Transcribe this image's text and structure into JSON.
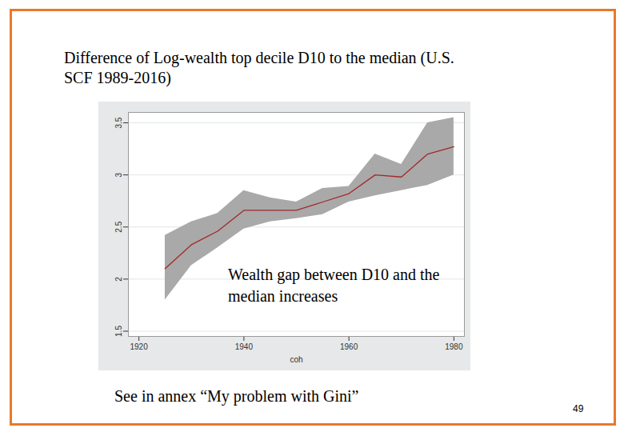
{
  "chart_data": {
    "type": "line",
    "title": "Difference of Log-wealth top decile D10 to the median (U.S. SCF 1989-2016)",
    "x_label": "coh",
    "x": [
      1925,
      1930,
      1935,
      1940,
      1945,
      1950,
      1955,
      1960,
      1965,
      1970,
      1975,
      1980
    ],
    "values": [
      2.1,
      2.33,
      2.46,
      2.66,
      2.66,
      2.66,
      2.74,
      2.82,
      3.0,
      2.98,
      3.2,
      3.27
    ],
    "ci_lower": [
      1.8,
      2.13,
      2.3,
      2.48,
      2.55,
      2.58,
      2.62,
      2.74,
      2.8,
      2.85,
      2.9,
      3.0
    ],
    "ci_upper": [
      2.42,
      2.55,
      2.63,
      2.85,
      2.78,
      2.74,
      2.87,
      2.89,
      3.2,
      3.1,
      3.5,
      3.55
    ],
    "color": "#a3282a",
    "xlim": [
      1918,
      1982
    ],
    "xticks": [
      1920,
      1940,
      1960,
      1980
    ],
    "ylim": [
      1.45,
      3.6
    ],
    "yticks": [
      1.5,
      2,
      2.5,
      3,
      3.5
    ],
    "grid": true,
    "annotations": [
      {
        "text": "Wealth gap between D10 and the median increases"
      },
      {
        "text": "See in annex “My problem with Gini”"
      },
      {
        "text": "49"
      }
    ]
  }
}
